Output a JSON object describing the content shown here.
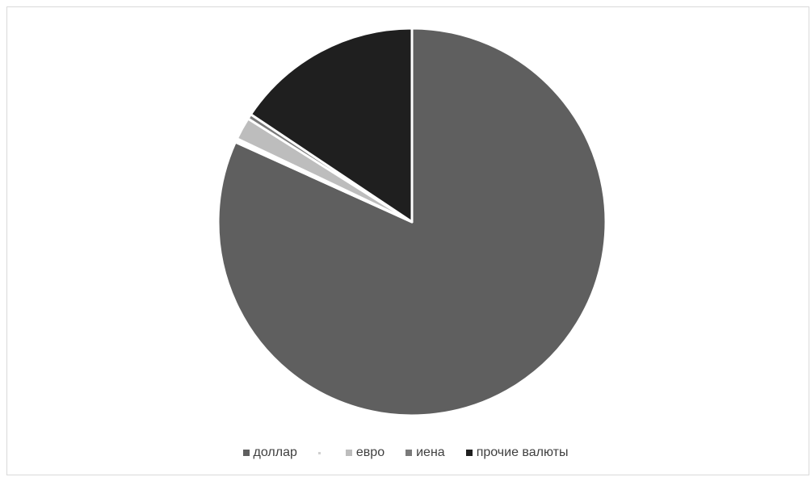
{
  "chart_data": {
    "type": "pie",
    "title": "",
    "categories": [
      "доллар",
      "",
      "евро",
      "иена",
      "прочие валюты"
    ],
    "values": [
      0.785,
      0.003,
      0.018,
      0.004,
      0.15
    ],
    "colors": [
      "#5f5f5f",
      "#ffffff",
      "#bdbdbd",
      "#7a7a7a",
      "#1f1f1f"
    ],
    "start_angle_deg": 0,
    "direction": "clockwise",
    "legend_position": "bottom",
    "legend": [
      {
        "label": "доллар",
        "color": "#5f5f5f"
      },
      {
        "label": "",
        "color": "#d0d0d0"
      },
      {
        "label": "евро",
        "color": "#bdbdbd"
      },
      {
        "label": "иена",
        "color": "#7a7a7a"
      },
      {
        "label": "прочие валюты",
        "color": "#1f1f1f"
      }
    ]
  }
}
